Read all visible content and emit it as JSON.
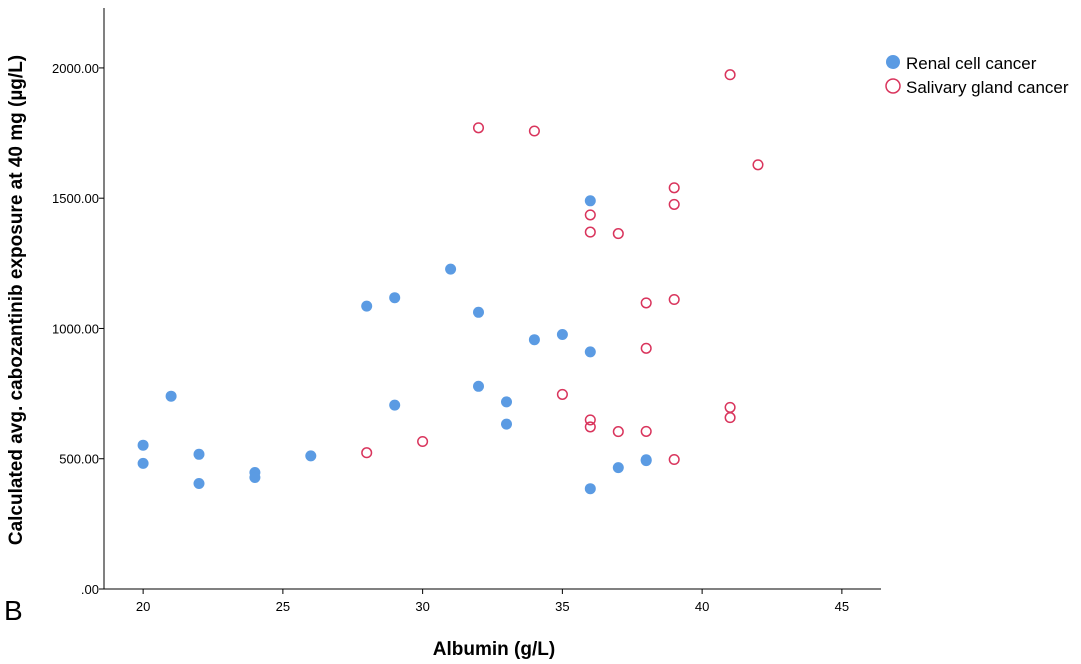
{
  "panel_label": "B",
  "colors": {
    "renal": "#5b9be3",
    "salivary": "#d9345c",
    "axis": "#000000"
  },
  "chart_data": {
    "type": "scatter",
    "title": "",
    "xlabel": "Albumin (g/L)",
    "ylabel": "Calculated avg. cabozantinib exposure at 40 mg (µg/L)",
    "xlim": [
      18.6,
      46.4
    ],
    "ylim": [
      0,
      2230
    ],
    "x_ticks": [
      20,
      25,
      30,
      35,
      40,
      45
    ],
    "x_tick_labels": [
      "20",
      "25",
      "30",
      "35",
      "40",
      "45"
    ],
    "y_ticks": [
      0,
      500,
      1000,
      1500,
      2000
    ],
    "y_tick_labels": [
      ".00",
      "500.00",
      "1000.00",
      "1500.00",
      "2000.00"
    ],
    "grid": false,
    "legend": "top-right",
    "series": [
      {
        "name": "Renal cell cancer",
        "marker": "filled-circle",
        "points": [
          [
            20,
            552
          ],
          [
            20,
            482
          ],
          [
            21,
            740
          ],
          [
            22,
            517
          ],
          [
            22,
            405
          ],
          [
            24,
            447
          ],
          [
            24,
            428
          ],
          [
            26,
            511
          ],
          [
            28,
            1086
          ],
          [
            29,
            1118
          ],
          [
            29,
            706
          ],
          [
            31,
            1228
          ],
          [
            32,
            1062
          ],
          [
            32,
            778
          ],
          [
            33,
            718
          ],
          [
            33,
            633
          ],
          [
            34,
            957
          ],
          [
            35,
            977
          ],
          [
            36,
            1490
          ],
          [
            36,
            910
          ],
          [
            36,
            385
          ],
          [
            37,
            466
          ],
          [
            38,
            496
          ],
          [
            38,
            493
          ]
        ]
      },
      {
        "name": "Salivary gland cancer",
        "marker": "open-circle",
        "points": [
          [
            28,
            523
          ],
          [
            30,
            566
          ],
          [
            32,
            1770
          ],
          [
            34,
            1758
          ],
          [
            35,
            747
          ],
          [
            36,
            1436
          ],
          [
            36,
            1370
          ],
          [
            36,
            649
          ],
          [
            36,
            622
          ],
          [
            37,
            1364
          ],
          [
            37,
            604
          ],
          [
            38,
            1098
          ],
          [
            38,
            924
          ],
          [
            38,
            605
          ],
          [
            39,
            1540
          ],
          [
            39,
            1476
          ],
          [
            39,
            1111
          ],
          [
            39,
            497
          ],
          [
            41,
            1974
          ],
          [
            41,
            697
          ],
          [
            41,
            658
          ],
          [
            42,
            1628
          ]
        ]
      }
    ]
  }
}
